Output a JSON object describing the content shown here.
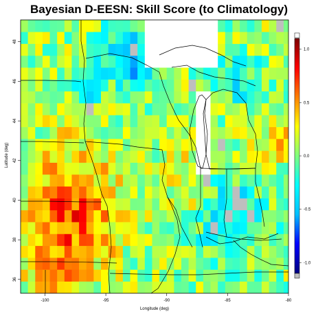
{
  "chart_data": {
    "type": "heatmap",
    "title": "Bayesian D-EESN: Skill Score (to Climatology)",
    "xlabel": "Longitude (deg)",
    "ylabel": "Latitude (deg)",
    "xlim": [
      -102,
      -80
    ],
    "ylim": [
      35.3,
      49.1
    ],
    "x_ticks": [
      -100,
      -95,
      -90,
      -85,
      -80
    ],
    "x_tick_labels": [
      "-100",
      "-95",
      "-90",
      "-85",
      "-80"
    ],
    "y_ticks": [
      36,
      38,
      40,
      42,
      44,
      46,
      48
    ],
    "y_tick_labels": [
      "36",
      "38",
      "40",
      "42",
      "44",
      "46",
      "48"
    ],
    "colorbar": {
      "min": -1.1,
      "max": 1.1,
      "ticks": [
        1.0,
        0.5,
        0.0,
        -0.5,
        -1.0
      ],
      "tick_labels": [
        "1.0",
        "0.5",
        "0.0",
        "-0.5",
        "-1.0"
      ],
      "colors": [
        "#00007f",
        "#0000ff",
        "#00bfff",
        "#00ffff",
        "#7fff7f",
        "#ffff00",
        "#ff8000",
        "#ff0000",
        "#7f0000"
      ],
      "na_color": "#bebebe"
    },
    "grid_cell_deg": 0.6
  }
}
